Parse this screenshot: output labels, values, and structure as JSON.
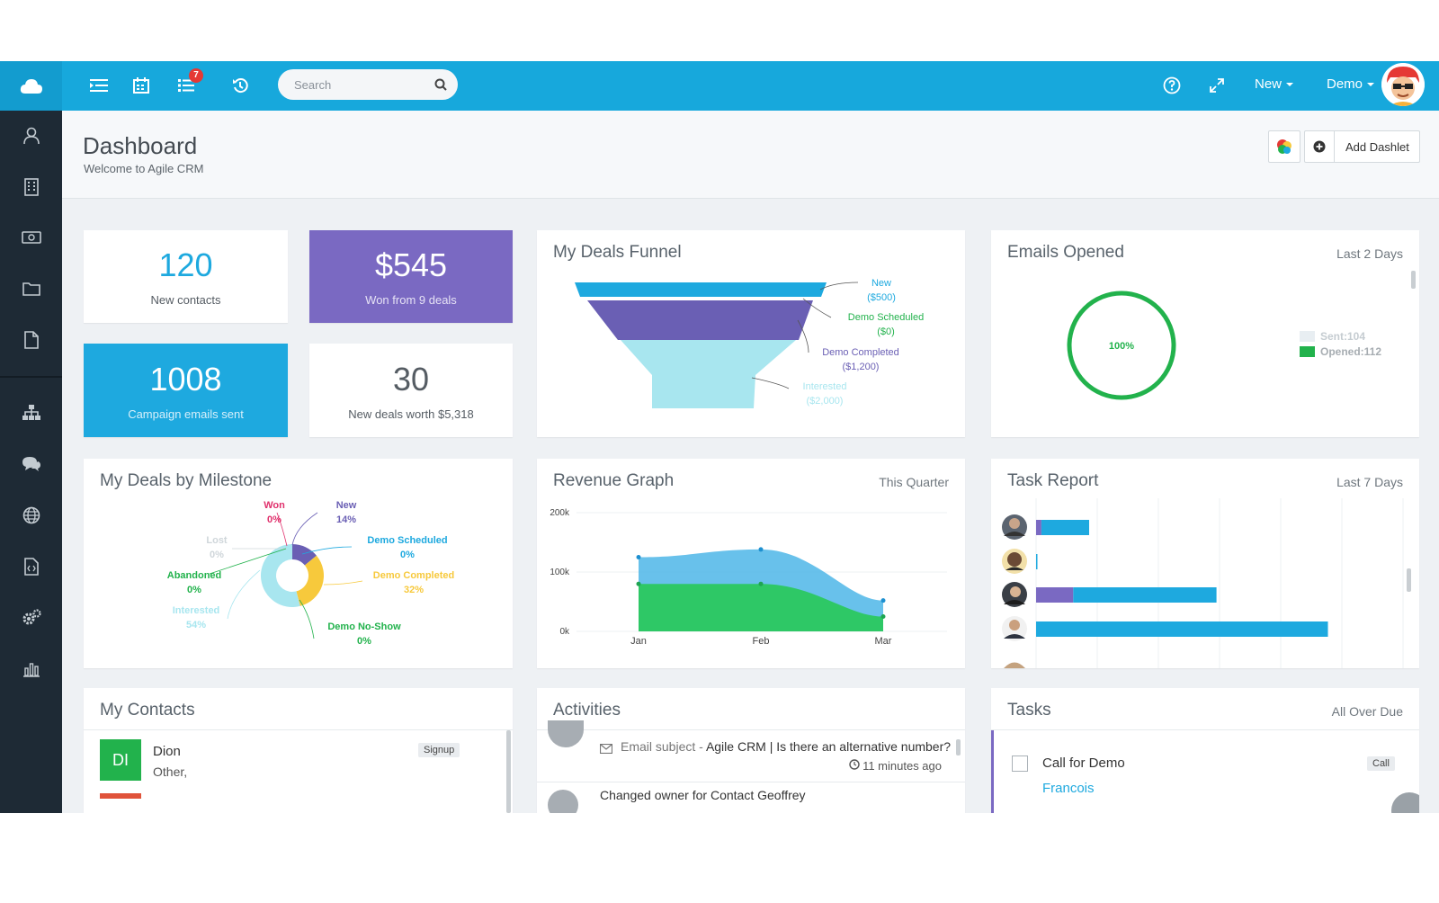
{
  "topbar": {
    "notification_count": "7",
    "search_placeholder": "Search",
    "new_label": "New",
    "user_label": "Demo"
  },
  "header": {
    "title": "Dashboard",
    "subtitle": "Welcome to Agile CRM",
    "add_dashlet_label": "Add Dashlet"
  },
  "stats": [
    {
      "value": "120",
      "label": "New contacts",
      "color": "#1ea9df"
    },
    {
      "value": "$545",
      "label": "Won from 9 deals",
      "color": "#7a69c2"
    },
    {
      "value": "1008",
      "label": "Campaign emails sent",
      "color": "#1ea9df"
    },
    {
      "value": "30",
      "label": "New deals worth $5,318",
      "color": "#555c63"
    }
  ],
  "funnel": {
    "title": "My Deals Funnel",
    "stages": [
      {
        "name": "New",
        "value": "($500)",
        "color": "#1ea9df"
      },
      {
        "name": "Demo Scheduled",
        "value": "($0)",
        "color": "#22b24c"
      },
      {
        "name": "Demo Completed",
        "value": "($1,200)",
        "color": "#6a5fb4"
      },
      {
        "name": "Interested",
        "value": "($2,000)",
        "color": "#a8e6ef"
      }
    ]
  },
  "emails": {
    "title": "Emails Opened",
    "range": "Last 2 Days",
    "percent": "100%",
    "legend": [
      {
        "label": "Sent:104",
        "color": "#e8eef2"
      },
      {
        "label": "Opened:112",
        "color": "#22b24c"
      }
    ]
  },
  "milestone": {
    "title": "My Deals by Milestone",
    "slices": [
      {
        "name": "Won",
        "value": "0%",
        "color": "#e0306c"
      },
      {
        "name": "New",
        "value": "14%",
        "color": "#6a5fb4"
      },
      {
        "name": "Demo Scheduled",
        "value": "0%",
        "color": "#1ea9df"
      },
      {
        "name": "Demo Completed",
        "value": "32%",
        "color": "#f7c93c"
      },
      {
        "name": "Demo No-Show",
        "value": "0%",
        "color": "#22b24c"
      },
      {
        "name": "Interested",
        "value": "54%",
        "color": "#a8e6ef"
      },
      {
        "name": "Abandoned",
        "value": "0%",
        "color": "#22b24c"
      },
      {
        "name": "Lost",
        "value": "0%",
        "color": "#cfd6da"
      }
    ]
  },
  "revenue": {
    "title": "Revenue Graph",
    "range": "This Quarter",
    "yticks": [
      "200k",
      "100k",
      "0k"
    ],
    "months": [
      "Jan",
      "Feb",
      "Mar"
    ]
  },
  "tasks_report": {
    "title": "Task Report",
    "range": "Last 7 Days"
  },
  "contacts": {
    "title": "My Contacts",
    "items": [
      {
        "initials": "DI",
        "name": "Dion",
        "detail": "Other,",
        "tag": "Signup",
        "color": "#22b24c"
      }
    ]
  },
  "activities": {
    "title": "Activities",
    "items": [
      {
        "prefix": "Email subject -",
        "subject": "Agile CRM | Is there an alternative number?",
        "time": "11 minutes ago"
      },
      {
        "text": "Changed owner for Contact Geoffrey"
      }
    ]
  },
  "tasks": {
    "title": "Tasks",
    "range": "All Over Due",
    "items": [
      {
        "name": "Call for Demo",
        "contact": "Francois",
        "tag": "Call"
      }
    ]
  },
  "chart_data": [
    {
      "type": "area",
      "title": "Revenue Graph",
      "categories": [
        "Jan",
        "Feb",
        "Mar"
      ],
      "ylim": [
        0,
        200000
      ],
      "series": [
        {
          "values": [
            125000,
            138000,
            52000
          ],
          "color": "#4db6e8"
        },
        {
          "values": [
            80000,
            80000,
            25000
          ],
          "color": "#2ec866"
        }
      ]
    },
    {
      "type": "pie",
      "title": "My Deals by Milestone",
      "categories": [
        "Won",
        "New",
        "Demo Scheduled",
        "Demo Completed",
        "Demo No-Show",
        "Interested",
        "Abandoned",
        "Lost"
      ],
      "values": [
        0,
        14,
        0,
        32,
        0,
        54,
        0,
        0
      ]
    },
    {
      "type": "bar",
      "title": "Task Report",
      "series": [
        {
          "values": [
            1,
            0,
            7,
            0
          ],
          "color": "#7a69c2"
        },
        {
          "values": [
            9,
            0.2,
            27,
            55
          ],
          "color": "#1ea9df"
        }
      ]
    }
  ]
}
